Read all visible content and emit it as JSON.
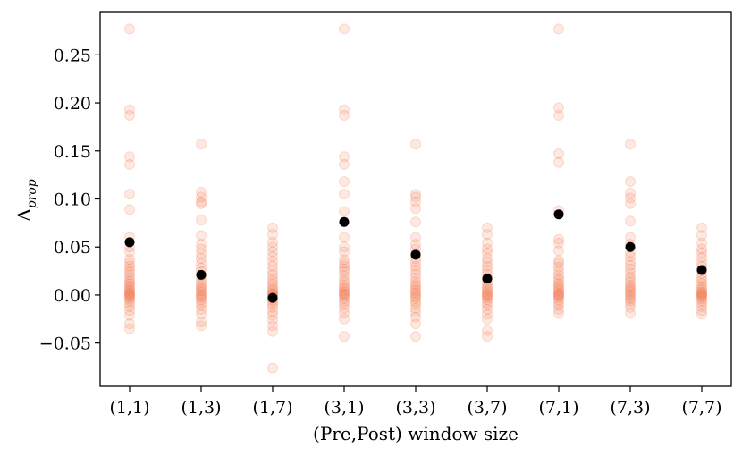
{
  "chart_data": {
    "type": "scatter",
    "title": "",
    "xlabel": "(Pre,Post) window size",
    "ylabel_main": "Δ",
    "ylabel_sub": "prop",
    "categories": [
      "(1,1)",
      "(1,3)",
      "(1,7)",
      "(3,1)",
      "(3,3)",
      "(3,7)",
      "(7,1)",
      "(7,3)",
      "(7,7)"
    ],
    "y_ticks": [
      -0.05,
      0.0,
      0.05,
      0.1,
      0.15,
      0.2,
      0.25
    ],
    "y_tick_labels": [
      "−0.05",
      "0.00",
      "0.05",
      "0.10",
      "0.15",
      "0.20",
      "0.25"
    ],
    "ylim": [
      -0.095,
      0.295
    ],
    "grid": false,
    "colors": {
      "points": "#f26b3a",
      "means": "#000000",
      "axis": "#000000"
    },
    "series": [
      {
        "values": [
          [
            0.277,
            0.193,
            0.187,
            0.144,
            0.136,
            0.105,
            0.089,
            0.06,
            0.05,
            0.045,
            0.037,
            0.033,
            0.03,
            0.027,
            0.024,
            0.021,
            0.018,
            0.015,
            0.013,
            0.011,
            0.009,
            0.007,
            0.005,
            0.004,
            0.002,
            0.001,
            0.0,
            -0.001,
            -0.002,
            -0.004,
            -0.006,
            -0.009,
            -0.012,
            -0.016,
            -0.021,
            -0.03,
            -0.035
          ],
          [
            0.157,
            0.107,
            0.102,
            0.097,
            0.095,
            0.078,
            0.062,
            0.053,
            0.048,
            0.043,
            0.038,
            0.033,
            0.028,
            0.024,
            0.02,
            0.016,
            0.013,
            0.01,
            0.008,
            0.006,
            0.004,
            0.002,
            0.0,
            -0.001,
            -0.003,
            -0.005,
            -0.008,
            -0.011,
            -0.015,
            -0.02,
            -0.028,
            -0.032
          ],
          [
            0.07,
            0.063,
            0.055,
            0.05,
            0.045,
            0.04,
            0.035,
            0.03,
            0.025,
            0.021,
            0.017,
            0.014,
            0.011,
            0.008,
            0.006,
            0.004,
            0.002,
            0.001,
            0.0,
            -0.001,
            -0.003,
            -0.005,
            -0.007,
            -0.01,
            -0.013,
            -0.017,
            -0.021,
            -0.026,
            -0.032,
            -0.038,
            -0.076
          ],
          [
            0.277,
            0.193,
            0.187,
            0.144,
            0.136,
            0.118,
            0.105,
            0.087,
            0.06,
            0.05,
            0.045,
            0.037,
            0.033,
            0.03,
            0.027,
            0.024,
            0.02,
            0.016,
            0.013,
            0.01,
            0.008,
            0.006,
            0.004,
            0.002,
            0.001,
            0.0,
            -0.002,
            -0.004,
            -0.007,
            -0.01,
            -0.014,
            -0.019,
            -0.025,
            -0.043
          ],
          [
            0.157,
            0.105,
            0.102,
            0.097,
            0.09,
            0.076,
            0.06,
            0.053,
            0.048,
            0.043,
            0.038,
            0.034,
            0.03,
            0.026,
            0.022,
            0.018,
            0.014,
            0.011,
            0.009,
            0.006,
            0.004,
            0.002,
            0.0,
            -0.002,
            -0.004,
            -0.007,
            -0.01,
            -0.014,
            -0.018,
            -0.023,
            -0.03,
            -0.043
          ],
          [
            0.07,
            0.063,
            0.054,
            0.048,
            0.044,
            0.038,
            0.034,
            0.03,
            0.026,
            0.022,
            0.018,
            0.015,
            0.012,
            0.009,
            0.007,
            0.005,
            0.003,
            0.001,
            0.0,
            -0.001,
            -0.003,
            -0.005,
            -0.008,
            -0.011,
            -0.015,
            -0.02,
            -0.025,
            -0.037,
            -0.043
          ],
          [
            0.277,
            0.195,
            0.187,
            0.147,
            0.138,
            0.088,
            0.058,
            0.054,
            0.046,
            0.036,
            0.033,
            0.029,
            0.025,
            0.021,
            0.018,
            0.015,
            0.012,
            0.01,
            0.008,
            0.006,
            0.004,
            0.002,
            0.001,
            0.0,
            -0.001,
            -0.003,
            -0.005,
            -0.008,
            -0.011,
            -0.015,
            -0.019
          ],
          [
            0.157,
            0.118,
            0.106,
            0.101,
            0.095,
            0.077,
            0.06,
            0.053,
            0.044,
            0.04,
            0.035,
            0.031,
            0.027,
            0.023,
            0.019,
            0.016,
            0.013,
            0.01,
            0.008,
            0.006,
            0.004,
            0.002,
            0.0,
            -0.002,
            -0.004,
            -0.006,
            -0.009,
            -0.013,
            -0.019
          ],
          [
            0.07,
            0.062,
            0.054,
            0.048,
            0.044,
            0.039,
            0.034,
            0.03,
            0.026,
            0.022,
            0.018,
            0.015,
            0.012,
            0.009,
            0.007,
            0.005,
            0.003,
            0.002,
            0.001,
            0.0,
            -0.001,
            -0.002,
            -0.004,
            -0.006,
            -0.009,
            -0.012,
            -0.016,
            -0.02
          ]
        ]
      },
      {
        "values": [
          0.055,
          0.021,
          -0.003,
          0.076,
          0.042,
          0.017,
          0.084,
          0.05,
          0.026
        ]
      }
    ]
  }
}
